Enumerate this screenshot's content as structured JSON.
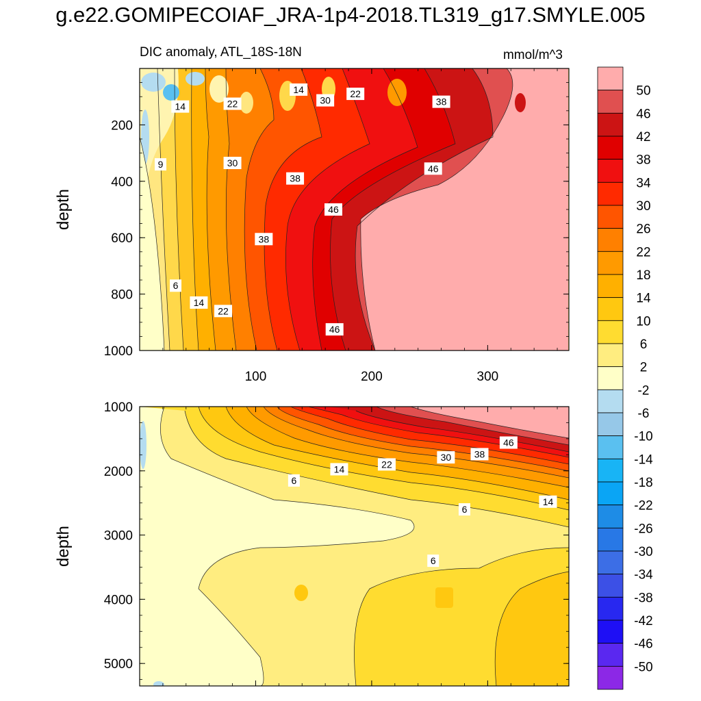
{
  "title": "g.e22.GOMIPECOIAF_JRA-1p4-2018.TL319_g17.SMYLE.005",
  "subtitle_left": "DIC anomaly, ATL_18S-18N",
  "subtitle_right": "mmol/m^3",
  "chart_data": [
    {
      "type": "heatmap",
      "panel": "upper",
      "ylabel": "depth",
      "xlim": [
        0,
        370
      ],
      "ylim": [
        1000,
        0
      ],
      "x_ticks": [
        100,
        200,
        300
      ],
      "y_ticks": [
        200,
        400,
        600,
        800,
        1000
      ],
      "y_tick_labels": [
        "200",
        "400",
        "600",
        "800",
        "1000"
      ],
      "x_tick_labels": [
        "100",
        "200",
        "300"
      ],
      "contour_labels": [
        {
          "text": "14",
          "x": 137,
          "y": 75
        },
        {
          "text": "22",
          "x": 186,
          "y": 90
        },
        {
          "text": "22",
          "x": 80,
          "y": 125
        },
        {
          "text": "14",
          "x": 35,
          "y": 135
        },
        {
          "text": "30",
          "x": 160,
          "y": 113
        },
        {
          "text": "38",
          "x": 260,
          "y": 118
        },
        {
          "text": "9",
          "x": 18,
          "y": 340
        },
        {
          "text": "30",
          "x": 80,
          "y": 335
        },
        {
          "text": "38",
          "x": 134,
          "y": 390
        },
        {
          "text": "46",
          "x": 253,
          "y": 355
        },
        {
          "text": "46",
          "x": 167,
          "y": 500
        },
        {
          "text": "38",
          "x": 107,
          "y": 605
        },
        {
          "text": "6",
          "x": 31,
          "y": 770
        },
        {
          "text": "14",
          "x": 51,
          "y": 830
        },
        {
          "text": "22",
          "x": 72,
          "y": 860
        },
        {
          "text": "46",
          "x": 168,
          "y": 925
        }
      ]
    },
    {
      "type": "heatmap",
      "panel": "lower",
      "ylabel": "depth",
      "xlim": [
        0,
        370
      ],
      "ylim": [
        5350,
        1000
      ],
      "x_ticks": [
        100,
        200,
        300
      ],
      "y_ticks": [
        1000,
        2000,
        3000,
        4000,
        5000
      ],
      "y_tick_labels": [
        "1000",
        "2000",
        "3000",
        "4000",
        "5000"
      ],
      "contour_labels": [
        {
          "text": "46",
          "x": 318,
          "y": 1560
        },
        {
          "text": "38",
          "x": 293,
          "y": 1740
        },
        {
          "text": "30",
          "x": 264,
          "y": 1790
        },
        {
          "text": "22",
          "x": 213,
          "y": 1900
        },
        {
          "text": "14",
          "x": 172,
          "y": 1975
        },
        {
          "text": "6",
          "x": 133,
          "y": 2150
        },
        {
          "text": "6",
          "x": 280,
          "y": 2600
        },
        {
          "text": "14",
          "x": 352,
          "y": 2480
        },
        {
          "text": "6",
          "x": 253,
          "y": 3400
        }
      ]
    }
  ],
  "colorbar": {
    "labels": [
      "50",
      "46",
      "42",
      "38",
      "34",
      "30",
      "26",
      "22",
      "18",
      "14",
      "10",
      "6",
      "2",
      "-2",
      "-6",
      "-10",
      "-14",
      "-18",
      "-22",
      "-26",
      "-30",
      "-34",
      "-38",
      "-42",
      "-46",
      "-50"
    ],
    "colors": [
      "#ffacac",
      "#e05050",
      "#cc1414",
      "#e00000",
      "#f01010",
      "#ff2a00",
      "#ff5500",
      "#ff8000",
      "#ff9a00",
      "#ffb000",
      "#ffc810",
      "#ffdc30",
      "#ffed80",
      "#ffffc8",
      "#b4dcf0",
      "#96c8e8",
      "#5ac0f0",
      "#18b4f5",
      "#0aa5f5",
      "#1e8ce6",
      "#2878e6",
      "#3c6ee6",
      "#3c50e6",
      "#2828f0",
      "#1e0ff5",
      "#5a28f0",
      "#8c28e6"
    ]
  }
}
